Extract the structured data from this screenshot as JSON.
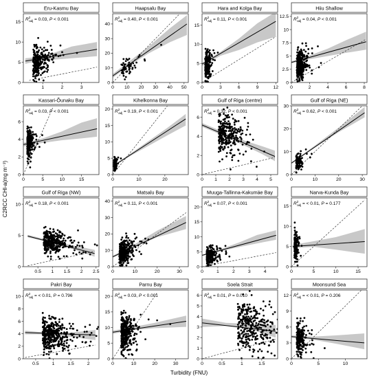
{
  "figure": {
    "ylabel": "C2RCC CHl-a(mg m⁻³)",
    "xlabel": "Turbidity (FNU)"
  },
  "chart_data": [
    {
      "type": "scatter",
      "title": "Eru-Kasmu Bay",
      "r2": "0.03",
      "p": "< 0.001",
      "xlim": [
        0,
        3.9
      ],
      "ylim": [
        0,
        17
      ],
      "xticks": [
        1,
        2,
        3
      ],
      "yticks": [
        0,
        5,
        10,
        15
      ],
      "fit": [
        [
          0.1,
          5.3
        ],
        [
          3.8,
          8.2
        ]
      ],
      "band": [
        [
          0.1,
          4.6,
          6.0
        ],
        [
          0.7,
          5.3,
          6.3
        ],
        [
          1.5,
          5.6,
          7.2
        ],
        [
          2.5,
          6.0,
          8.9
        ],
        [
          3.8,
          6.5,
          10.0
        ]
      ],
      "one_to_one": [
        [
          0.3,
          0.5
        ],
        [
          3.8,
          3.8
        ]
      ],
      "n": 250,
      "cx": 0.5,
      "sx": 0.35,
      "cy": 5,
      "sy": 2.0
    },
    {
      "type": "scatter",
      "title": "Haapsalu Bay",
      "r2": "0.40",
      "p": "< 0.001",
      "xlim": [
        0,
        53
      ],
      "ylim": [
        0,
        47
      ],
      "xticks": [
        0,
        10,
        20,
        30,
        40,
        50
      ],
      "yticks": [
        0,
        10,
        20,
        30,
        40
      ],
      "fit": [
        [
          0,
          4.5
        ],
        [
          52,
          40
        ]
      ],
      "band": [
        [
          0,
          3.2,
          5.8
        ],
        [
          10,
          10.5,
          13.2
        ],
        [
          25,
          19.8,
          24.5
        ],
        [
          40,
          27.5,
          37.0
        ],
        [
          52,
          32.5,
          46.0
        ]
      ],
      "one_to_one": [
        [
          0,
          0
        ],
        [
          52,
          52
        ]
      ],
      "n": 60,
      "cx": 6,
      "sy": 3,
      "cy": 8,
      "sx": 5
    },
    {
      "type": "scatter",
      "title": "Hara and Kolga Bay",
      "r2": "0.11",
      "p": "< 0.001",
      "xlim": [
        0,
        12.3
      ],
      "ylim": [
        0,
        18
      ],
      "xticks": [
        0,
        3,
        6,
        9,
        12
      ],
      "yticks": [
        0,
        5,
        10,
        15
      ],
      "fit": [
        [
          0,
          4.8
        ],
        [
          12,
          16
        ]
      ],
      "band": [
        [
          0,
          4.3,
          5.2
        ],
        [
          3,
          7.0,
          8.0
        ],
        [
          6,
          8.5,
          11.5
        ],
        [
          9,
          10.5,
          15.5
        ],
        [
          12,
          12.0,
          18.5
        ]
      ],
      "one_to_one": [
        [
          0,
          0
        ],
        [
          12,
          12
        ]
      ],
      "n": 220,
      "cx": 0.5,
      "sx": 0.4,
      "cy": 4,
      "sy": 1.8
    },
    {
      "type": "scatter",
      "title": "Hiiu Shallow",
      "r2": "0.04",
      "p": "< 0.001",
      "xlim": [
        0,
        8.3
      ],
      "ylim": [
        0,
        13
      ],
      "xticks": [
        0,
        2,
        4,
        6,
        8
      ],
      "yticks": [
        0,
        2.5,
        5.0,
        7.5,
        10.0,
        12.5
      ],
      "fit": [
        [
          0,
          3.8
        ],
        [
          8.2,
          7.7
        ]
      ],
      "band": [
        [
          0,
          3.6,
          4.0
        ],
        [
          2,
          4.4,
          5.1
        ],
        [
          4,
          5.0,
          6.4
        ],
        [
          6,
          5.6,
          8.0
        ],
        [
          8.2,
          6.2,
          9.6
        ]
      ],
      "one_to_one": [
        [
          0,
          0
        ],
        [
          8.2,
          8.2
        ]
      ],
      "n": 320,
      "cx": 0.6,
      "sx": 0.5,
      "cy": 3.3,
      "sy": 1.4
    },
    {
      "type": "scatter",
      "title": "Kassari-Õunaku Bay",
      "r2": "0.03",
      "p": "< 0.001",
      "xlim": [
        0,
        19.5
      ],
      "ylim": [
        0,
        7.8
      ],
      "xticks": [
        0,
        5,
        10,
        15
      ],
      "yticks": [
        0,
        2,
        4,
        6
      ],
      "fit": [
        [
          0,
          3.4
        ],
        [
          19,
          5.2
        ]
      ],
      "band": [
        [
          0,
          3.2,
          3.6
        ],
        [
          5,
          3.6,
          4.1
        ],
        [
          10,
          3.9,
          4.9
        ],
        [
          15,
          4.1,
          5.9
        ],
        [
          19,
          4.3,
          6.4
        ]
      ],
      "one_to_one": [
        [
          0,
          0
        ],
        [
          7.6,
          7.6
        ]
      ],
      "n": 180,
      "cx": 1.0,
      "sx": 0.8,
      "cy": 3.5,
      "sy": 0.8
    },
    {
      "type": "scatter",
      "title": "Kihelkonna Bay",
      "r2": "0.19",
      "p": "< 0.001",
      "xlim": [
        0,
        29
      ],
      "ylim": [
        0,
        21
      ],
      "xticks": [
        0,
        10,
        20
      ],
      "yticks": [
        0,
        5,
        10,
        15,
        20
      ],
      "fit": [
        [
          0,
          2.5
        ],
        [
          28,
          17
        ]
      ],
      "band": [
        [
          0,
          2.3,
          2.7
        ],
        [
          7,
          5.8,
          6.5
        ],
        [
          14,
          8.9,
          10.4
        ],
        [
          21,
          12.0,
          14.3
        ],
        [
          28,
          15.0,
          18.5
        ]
      ],
      "one_to_one": [
        [
          0,
          0
        ],
        [
          21,
          21
        ]
      ],
      "n": 120,
      "cx": 0.5,
      "sx": 0.4,
      "cy": 3,
      "sy": 1.0
    },
    {
      "type": "scatter",
      "title": "Gulf of Riga (centre)",
      "r2": "0.32",
      "p": "< 0.001",
      "xlim": [
        0,
        5.5
      ],
      "ylim": [
        0,
        7.2
      ],
      "xticks": [
        0,
        1,
        2,
        3,
        4,
        5
      ],
      "yticks": [
        0,
        2,
        4,
        6
      ],
      "fit": [
        [
          0,
          5.2
        ],
        [
          5.3,
          1.9
        ]
      ],
      "band": [
        [
          0,
          5.0,
          5.4
        ],
        [
          1.5,
          4.1,
          4.5
        ],
        [
          3,
          3.1,
          3.6
        ],
        [
          4.3,
          2.2,
          3.0
        ],
        [
          5.3,
          1.4,
          2.5
        ]
      ],
      "one_to_one": [
        [
          0,
          0
        ],
        [
          5.3,
          1.8
        ]
      ],
      "n": 300,
      "cx": 1.2,
      "sx": 0.8,
      "cy": 4.4,
      "sy": 1.1
    },
    {
      "type": "scatter",
      "title": "Gulf of Riga (NE)",
      "r2": "0.62",
      "p": "< 0.001",
      "xlim": [
        0,
        32
      ],
      "ylim": [
        0,
        30
      ],
      "xticks": [
        0,
        10,
        20,
        30
      ],
      "yticks": [
        0,
        10,
        20,
        30
      ],
      "fit": [
        [
          0,
          5
        ],
        [
          31,
          27
        ]
      ],
      "band": [
        [
          0,
          4.7,
          5.3
        ],
        [
          10,
          11.8,
          12.7
        ],
        [
          20,
          18.5,
          20.5
        ],
        [
          31,
          25.0,
          29.5
        ]
      ],
      "one_to_one": [
        [
          0,
          0
        ],
        [
          30,
          30
        ]
      ],
      "n": 90,
      "cx": 2,
      "sx": 1.2,
      "cy": 5,
      "sy": 1.8
    },
    {
      "type": "scatter",
      "title": "Gulf of Riga (NW)",
      "r2": "0.18",
      "p": "< 0.001",
      "xlim": [
        0,
        2.6
      ],
      "ylim": [
        0,
        11
      ],
      "xticks": [
        0.5,
        1.0,
        1.5,
        2.0,
        2.5
      ],
      "yticks": [
        0,
        5,
        10
      ],
      "fit": [
        [
          0.15,
          4.9
        ],
        [
          2.45,
          2.1
        ]
      ],
      "band": [
        [
          0.15,
          4.7,
          5.1
        ],
        [
          1,
          3.8,
          4.1
        ],
        [
          1.7,
          2.8,
          3.4
        ],
        [
          2.45,
          1.6,
          2.7
        ]
      ],
      "one_to_one": [
        [
          0.15,
          0.15
        ],
        [
          2.45,
          2.45
        ]
      ],
      "n": 350,
      "cx": 0.7,
      "sx": 0.4,
      "cy": 4.3,
      "sy": 0.9
    },
    {
      "type": "scatter",
      "title": "Matsalu Bay",
      "r2": "0.11",
      "p": "< 0.001",
      "xlim": [
        0,
        34
      ],
      "ylim": [
        0,
        42
      ],
      "xticks": [
        0,
        10,
        20,
        30
      ],
      "yticks": [
        0,
        10,
        20,
        30,
        40
      ],
      "fit": [
        [
          0,
          6
        ],
        [
          33,
          27
        ]
      ],
      "band": [
        [
          0,
          5.4,
          6.6
        ],
        [
          10,
          12.0,
          13.8
        ],
        [
          20,
          18.0,
          22.0
        ],
        [
          33,
          23.0,
          31.0
        ]
      ],
      "one_to_one": [
        [
          0,
          0
        ],
        [
          33,
          33
        ]
      ],
      "n": 300,
      "cx": 3,
      "sx": 2.5,
      "cy": 8,
      "sy": 4
    },
    {
      "type": "scatter",
      "title": "Muuga-Tallinna-Kakumäe Bay",
      "r2": "0.07",
      "p": "< 0.001",
      "xlim": [
        0,
        4.8
      ],
      "ylim": [
        0,
        23
      ],
      "xticks": [
        0,
        1,
        2,
        3,
        4
      ],
      "yticks": [
        0,
        5,
        10,
        15,
        20
      ],
      "fit": [
        [
          0,
          3.8
        ],
        [
          4.7,
          10.5
        ]
      ],
      "band": [
        [
          0,
          3.6,
          4.0
        ],
        [
          1.2,
          5.2,
          5.9
        ],
        [
          2.4,
          6.6,
          8.2
        ],
        [
          3.5,
          7.8,
          10.6
        ],
        [
          4.7,
          9.0,
          12.2
        ]
      ],
      "one_to_one": [
        [
          0,
          0
        ],
        [
          4.7,
          4.7
        ]
      ],
      "n": 250,
      "cx": 0.3,
      "sx": 0.25,
      "cy": 3.5,
      "sy": 1.4
    },
    {
      "type": "scatter",
      "title": "Narva-Kunda Bay",
      "r2": "< 0.01",
      "p": "= 0.177",
      "xlim": [
        0,
        17
      ],
      "ylim": [
        0,
        17
      ],
      "xticks": [
        0,
        5,
        10,
        15
      ],
      "yticks": [
        0,
        5,
        10,
        15
      ],
      "fit": [
        [
          0.3,
          5
        ],
        [
          16.5,
          6.2
        ]
      ],
      "band": [
        [
          0.3,
          4.6,
          5.4
        ],
        [
          5,
          4.9,
          6.3
        ],
        [
          10,
          4.2,
          7.3
        ],
        [
          16.5,
          3.2,
          9.3
        ]
      ],
      "one_to_one": [
        [
          0,
          0
        ],
        [
          16.5,
          16.5
        ]
      ],
      "n": 200,
      "cx": 0.7,
      "sx": 0.3,
      "cy": 5,
      "sy": 1.8
    },
    {
      "type": "scatter",
      "title": "Pakri Bay",
      "r2": "< 0.01",
      "p": "= 0.796",
      "xlim": [
        0.15,
        2.3
      ],
      "ylim": [
        0,
        11
      ],
      "xticks": [
        0.5,
        1.0,
        1.5,
        2.0
      ],
      "yticks": [
        0,
        2,
        4,
        6,
        8,
        10
      ],
      "fit": [
        [
          0.2,
          4.2
        ],
        [
          2.2,
          3.8
        ]
      ],
      "band": [
        [
          0.2,
          3.9,
          4.5
        ],
        [
          0.8,
          3.9,
          4.2
        ],
        [
          1.5,
          3.5,
          4.2
        ],
        [
          2.2,
          3.0,
          4.6
        ]
      ],
      "one_to_one": [
        [
          0.2,
          0.2
        ],
        [
          2.2,
          2.2
        ]
      ],
      "n": 400,
      "cx": 0.7,
      "sx": 0.35,
      "cy": 3.8,
      "sy": 1.3
    },
    {
      "type": "scatter",
      "title": "Parnu Bay",
      "r2": "0.03",
      "p": "< 0.001",
      "xlim": [
        0,
        36
      ],
      "ylim": [
        0,
        22
      ],
      "xticks": [
        0,
        10,
        20,
        30
      ],
      "yticks": [
        0,
        5,
        10,
        15,
        20
      ],
      "fit": [
        [
          0,
          8.5
        ],
        [
          35,
          12
        ]
      ],
      "band": [
        [
          0,
          8.0,
          9.0
        ],
        [
          10,
          9.2,
          10.2
        ],
        [
          20,
          9.8,
          11.5
        ],
        [
          35,
          10.2,
          13.8
        ]
      ],
      "one_to_one": [
        [
          0,
          0
        ],
        [
          21,
          21
        ]
      ],
      "n": 300,
      "cx": 4,
      "sx": 3,
      "cy": 8,
      "sy": 3.2
    },
    {
      "type": "scatter",
      "title": "Soela Strait",
      "r2": "0.01",
      "p": "= 0.010",
      "xlim": [
        0,
        1.9
      ],
      "ylim": [
        0,
        6.5
      ],
      "xticks": [
        0.0,
        0.5,
        1.0,
        1.5
      ],
      "yticks": [
        0,
        1,
        2,
        3,
        4,
        5,
        6
      ],
      "fit": [
        [
          0,
          3.4
        ],
        [
          1.85,
          2.6
        ]
      ],
      "band": [
        [
          0,
          3.0,
          3.8
        ],
        [
          0.6,
          3.1,
          3.4
        ],
        [
          1.2,
          2.8,
          3.3
        ],
        [
          1.85,
          2.0,
          3.2
        ]
      ],
      "one_to_one": [
        [
          0,
          0
        ],
        [
          1.85,
          1.85
        ]
      ],
      "n": 350,
      "cx": 0.9,
      "sx": 0.45,
      "cy": 3.2,
      "sy": 1.3
    },
    {
      "type": "scatter",
      "title": "Moonsund Sea",
      "r2": "< 0.01",
      "p": "= 0.206",
      "xlim": [
        0,
        14
      ],
      "ylim": [
        0,
        13
      ],
      "xticks": [
        0,
        5,
        10
      ],
      "yticks": [
        0,
        3,
        6,
        9,
        12
      ],
      "fit": [
        [
          0,
          4.2
        ],
        [
          13.5,
          3.0
        ]
      ],
      "band": [
        [
          0,
          4.0,
          4.4
        ],
        [
          4,
          3.6,
          4.2
        ],
        [
          8,
          2.9,
          4.4
        ],
        [
          13.5,
          1.8,
          4.8
        ]
      ],
      "one_to_one": [
        [
          0,
          0
        ],
        [
          13.5,
          13.5
        ]
      ],
      "n": 220,
      "cx": 1.0,
      "sx": 0.7,
      "cy": 3.8,
      "sy": 1.5
    }
  ]
}
